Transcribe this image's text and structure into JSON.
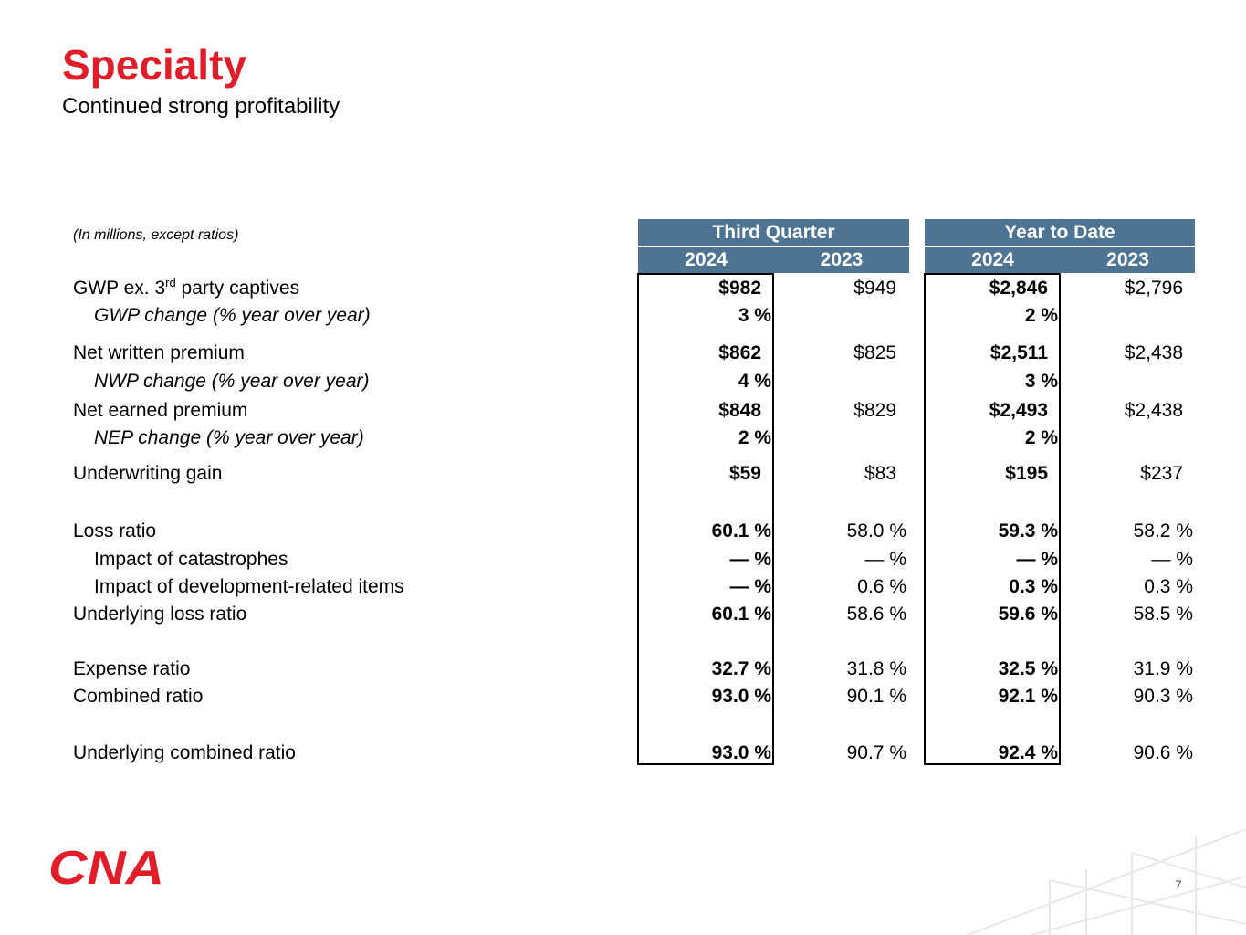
{
  "slide": {
    "title": "Specialty",
    "subtitle": "Continued strong profitability",
    "units_note": "(In millions, except ratios)",
    "page_number": "7",
    "logo_text": "CNA"
  },
  "table": {
    "groups": [
      "Third Quarter",
      "Year to Date"
    ],
    "years": [
      "2024",
      "2023",
      "2024",
      "2023"
    ],
    "rows": [
      {
        "label": "GWP ex. 3",
        "label_sup": "rd",
        "label_tail": " party captives",
        "values": [
          "$982",
          "$949",
          "$2,846",
          "$2,796"
        ]
      },
      {
        "label": "GWP change (% year over year)",
        "values": [
          "3 %",
          "",
          "2 %",
          ""
        ]
      },
      {
        "label": "Net written premium",
        "values": [
          "$862",
          "$825",
          "$2,511",
          "$2,438"
        ]
      },
      {
        "label": "NWP change (% year over year)",
        "values": [
          "4 %",
          "",
          "3 %",
          ""
        ]
      },
      {
        "label": "Net earned premium",
        "values": [
          "$848",
          "$829",
          "$2,493",
          "$2,438"
        ]
      },
      {
        "label": "NEP change (% year over year)",
        "values": [
          "2 %",
          "",
          "2 %",
          ""
        ]
      },
      {
        "label": "Underwriting gain",
        "values": [
          "$59",
          "$83",
          "$195",
          "$237"
        ]
      },
      {
        "label": "Loss ratio",
        "values": [
          "60.1 %",
          "58.0 %",
          "59.3 %",
          "58.2 %"
        ]
      },
      {
        "label": "Impact of catastrophes",
        "values": [
          "— %",
          "— %",
          "— %",
          "— %"
        ]
      },
      {
        "label": "Impact of development-related items",
        "values": [
          "— %",
          "0.6 %",
          "0.3 %",
          "0.3 %"
        ]
      },
      {
        "label": "Underlying loss ratio",
        "values": [
          "60.1 %",
          "58.6 %",
          "59.6 %",
          "58.5 %"
        ]
      },
      {
        "label": "Expense ratio",
        "values": [
          "32.7 %",
          "31.8 %",
          "32.5 %",
          "31.9 %"
        ]
      },
      {
        "label": "Combined ratio",
        "values": [
          "93.0 %",
          "90.1 %",
          "92.1 %",
          "90.3 %"
        ]
      },
      {
        "label": "Underlying combined ratio",
        "values": [
          "93.0 %",
          "90.7 %",
          "92.4 %",
          "90.6 %"
        ]
      }
    ]
  },
  "colors": {
    "title": "#e01e2a",
    "header_bg": "#4d7492",
    "header_text": "#ffffff",
    "logo": "#e01e2a"
  }
}
